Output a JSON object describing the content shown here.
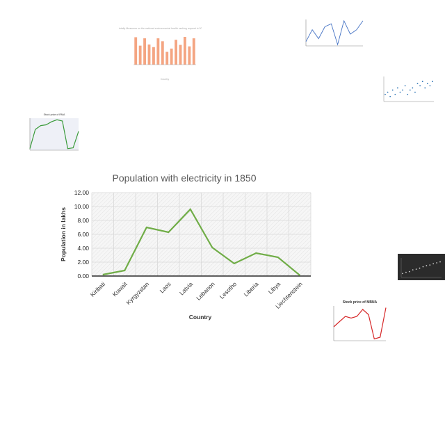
{
  "chart_data": [
    {
      "type": "line",
      "title": "Population with electricity in 1850",
      "xlabel": "Country",
      "ylabel": "Population in lakhs",
      "categories": [
        "Kiribati",
        "Kuwait",
        "Kyrgyzstan",
        "Laos",
        "Latvia",
        "Lebanon",
        "Lesotho",
        "Liberia",
        "Libya",
        "Liechtenstein"
      ],
      "values": [
        0.2,
        0.8,
        7.0,
        6.3,
        9.6,
        4.1,
        1.8,
        3.3,
        2.7,
        0.1
      ],
      "yticks": [
        "0.00",
        "2.00",
        "4.00",
        "6.00",
        "8.00",
        "10.00",
        "12.00"
      ],
      "ylim": [
        0,
        12
      ],
      "grid": true,
      "color": "#70ad47"
    },
    {
      "type": "bar",
      "title": "An totally Measures on the national environmental health ranking request in 2013",
      "xlabel": "Country",
      "values": [
        75,
        52,
        72,
        55,
        48,
        72,
        64,
        35,
        44,
        68,
        54,
        76,
        50,
        72
      ],
      "color": "#f4a582"
    },
    {
      "type": "line",
      "values": [
        50,
        58,
        52,
        60,
        62,
        48,
        64,
        55,
        58,
        64
      ],
      "color": "#4472c4"
    },
    {
      "type": "scatter",
      "values": [
        60,
        62,
        58,
        64,
        60,
        66,
        62,
        64,
        68,
        60,
        64,
        66,
        62,
        70,
        68,
        72,
        66,
        70,
        68,
        72
      ],
      "color": "#2e75b6"
    },
    {
      "type": "line",
      "title": "Stock price of RMA",
      "values": [
        10,
        60,
        70,
        72,
        80,
        85,
        82,
        10,
        12,
        55
      ],
      "color": "#3a9b3a"
    },
    {
      "type": "scatter",
      "values": [
        20,
        25,
        28,
        35,
        38,
        42,
        48,
        52,
        55,
        60,
        64,
        68
      ],
      "color": "#cccccc"
    },
    {
      "type": "line",
      "title": "Stock price of MBNA",
      "values": [
        40,
        55,
        70,
        65,
        70,
        90,
        75,
        5,
        10,
        95
      ],
      "color": "#d62728"
    }
  ]
}
